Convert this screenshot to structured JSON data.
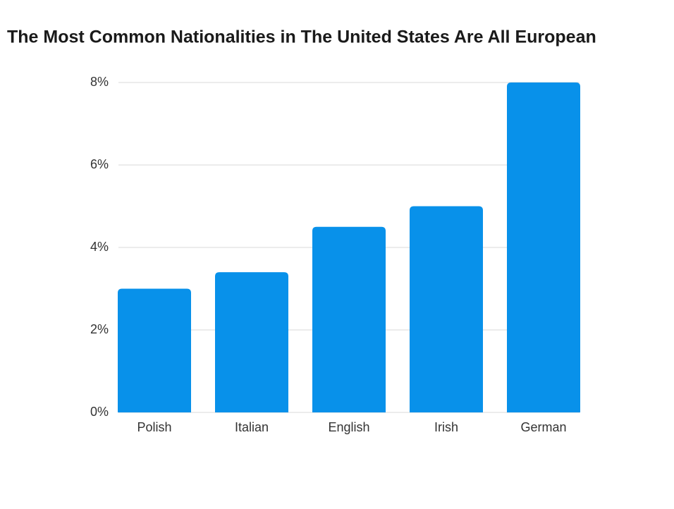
{
  "chart_data": {
    "type": "bar",
    "title": "The Most Common Nationalities in The United States Are All European",
    "categories": [
      "Polish",
      "Italian",
      "English",
      "Irish",
      "German"
    ],
    "values": [
      3.0,
      3.4,
      4.5,
      5.0,
      8.0
    ],
    "color": "#0891ea",
    "ylim": [
      0,
      8
    ],
    "yticks": [
      {
        "value": 0,
        "label": "0%"
      },
      {
        "value": 2,
        "label": "2%"
      },
      {
        "value": 4,
        "label": "4%"
      },
      {
        "value": 6,
        "label": "6%"
      },
      {
        "value": 8,
        "label": "8%"
      }
    ],
    "grid": true
  }
}
